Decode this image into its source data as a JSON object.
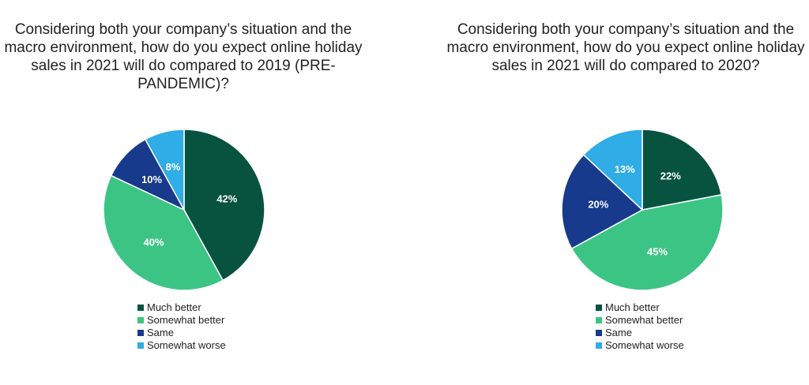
{
  "chart_data": [
    {
      "type": "pie",
      "title": "Considering both your company’s situation and the macro environment, how do you expect online holiday sales in 2021 will do compared to 2019 (PRE-PANDEMIC)?",
      "categories": [
        "Much better",
        "Somewhat better",
        "Same",
        "Somewhat worse"
      ],
      "values": [
        42,
        40,
        10,
        8
      ],
      "data_labels": [
        "42%",
        "40%",
        "10%",
        "8%"
      ],
      "colors": [
        "#075340",
        "#3cc485",
        "#173a8c",
        "#30ace6"
      ],
      "legend_position": "bottom"
    },
    {
      "type": "pie",
      "title": "Considering both your company’s situation and the macro environment, how do you expect online holiday sales in 2021 will do compared to 2020?",
      "categories": [
        "Much better",
        "Somewhat better",
        "Same",
        "Somewhat worse"
      ],
      "values": [
        22,
        45,
        20,
        13
      ],
      "data_labels": [
        "22%",
        "45%",
        "20%",
        "13%"
      ],
      "colors": [
        "#075340",
        "#3cc485",
        "#173a8c",
        "#30ace6"
      ],
      "legend_position": "bottom"
    }
  ]
}
